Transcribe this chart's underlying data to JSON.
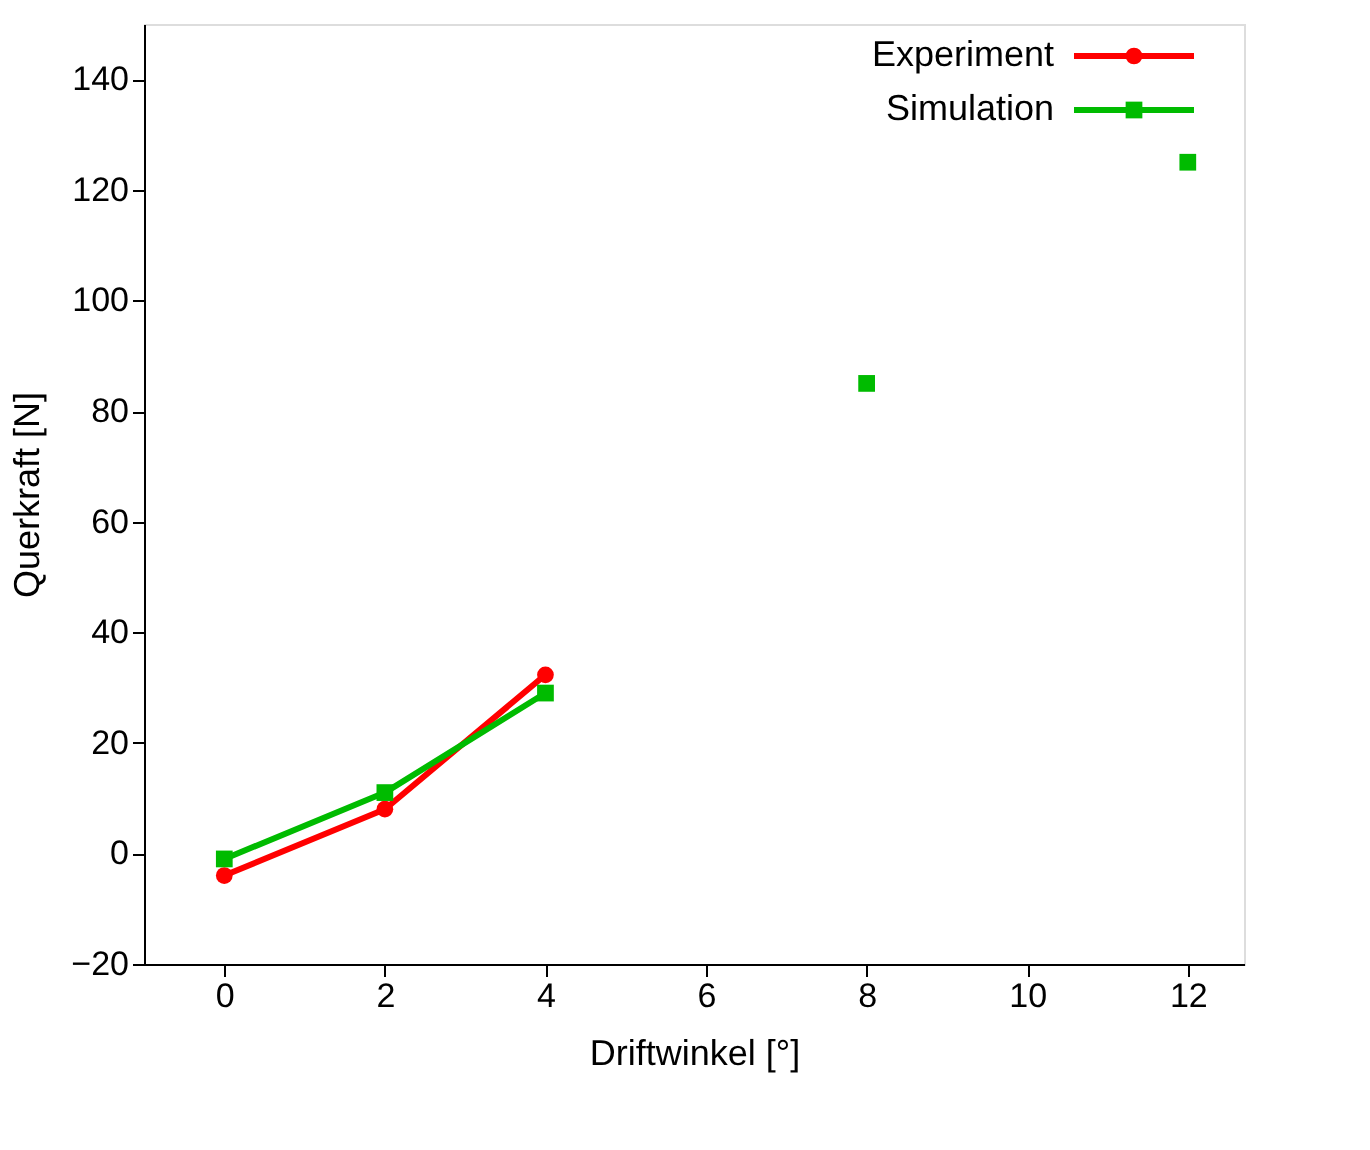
{
  "chart_data": {
    "type": "line",
    "xlabel": "Driftwinkel [°]",
    "ylabel": "Querkraft [N]",
    "xlim": [
      -1,
      12.7
    ],
    "xticks": [
      0,
      2,
      4,
      6,
      8,
      10,
      12
    ],
    "ylim": [
      -20,
      150
    ],
    "yticks": [
      -20,
      0,
      20,
      40,
      60,
      80,
      100,
      120,
      140
    ],
    "grid": false,
    "legend": "top right",
    "line_style": "solid",
    "series": [
      {
        "name": "Experiment",
        "color": "#ff0000",
        "marker": "circle",
        "x": [
          0,
          2,
          4
        ],
        "values": [
          -4,
          8,
          32.3
        ]
      },
      {
        "name": "Simulation",
        "color": "#00bb00",
        "marker": "square",
        "x": [
          0,
          2,
          4,
          6,
          8,
          10,
          12
        ],
        "values": [
          -1,
          11,
          29,
          null,
          85,
          null,
          125
        ]
      }
    ]
  }
}
